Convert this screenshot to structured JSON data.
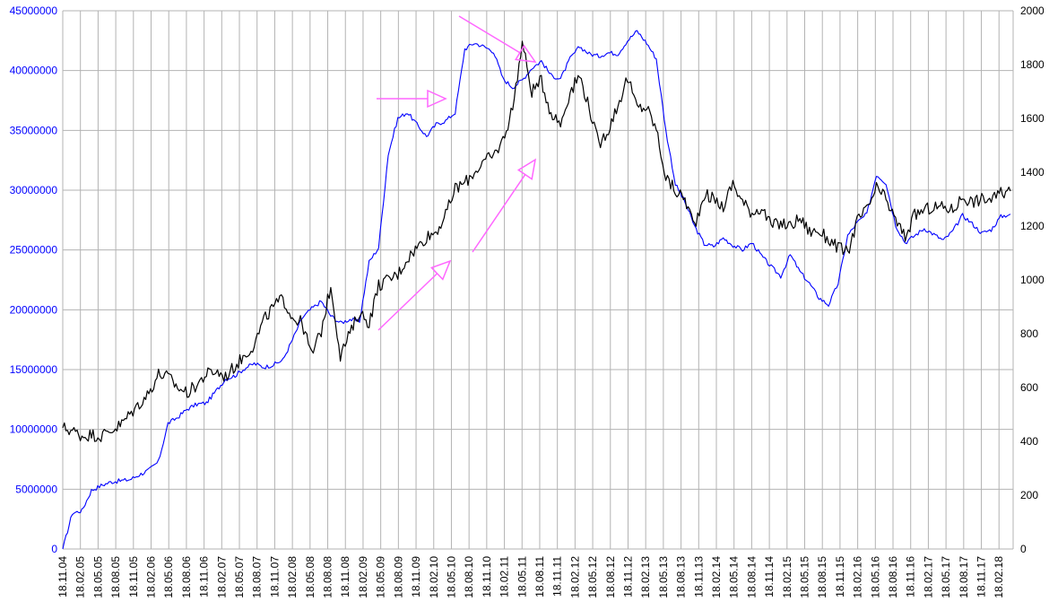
{
  "chart_data": {
    "type": "line",
    "title": "",
    "xlabel": "",
    "ylabel_left": "",
    "ylabel_right": "",
    "grid": true,
    "legend": "none",
    "x_ticks": [
      "18.11.04",
      "18.02.05",
      "18.05.05",
      "18.08.05",
      "18.11.05",
      "18.02.06",
      "18.05.06",
      "18.08.06",
      "18.11.06",
      "18.02.07",
      "18.05.07",
      "18.08.07",
      "18.11.07",
      "18.02.08",
      "18.05.08",
      "18.08.08",
      "18.11.08",
      "18.02.09",
      "18.05.09",
      "18.08.09",
      "18.11.09",
      "18.02.10",
      "18.05.10",
      "18.08.10",
      "18.11.10",
      "18.02.11",
      "18.05.11",
      "18.08.11",
      "18.11.11",
      "18.02.12",
      "18.05.12",
      "18.08.12",
      "18.11.12",
      "18.02.13",
      "18.05.13",
      "18.08.13",
      "18.11.13",
      "18.02.14",
      "18.05.14",
      "18.08.14",
      "18.11.14",
      "18.02.15",
      "18.05.15",
      "18.08.15",
      "18.11.15",
      "18.02.16",
      "18.05.16",
      "18.08.16",
      "18.11.16",
      "18.02.17",
      "18.05.17",
      "18.08.17",
      "18.11.17",
      "18.02.18"
    ],
    "left_axis": {
      "ylim": [
        0,
        45000000
      ],
      "ticks": [
        "0",
        "5000000",
        "10000000",
        "15000000",
        "20000000",
        "25000000",
        "30000000",
        "35000000",
        "40000000",
        "45000000"
      ],
      "color": "#0000ff"
    },
    "right_axis": {
      "ylim": [
        0,
        2000
      ],
      "ticks": [
        "0",
        "200",
        "400",
        "600",
        "800",
        "1000",
        "1200",
        "1400",
        "1600",
        "1800",
        "2000"
      ],
      "color": "#000000"
    },
    "series": [
      {
        "axis": "left",
        "color": "#0000ff",
        "values": [
          0,
          3000000,
          3200000,
          4900000,
          5300000,
          5600000,
          5700000,
          5800000,
          6200000,
          6600000,
          7300000,
          10500000,
          11000000,
          11700000,
          12100000,
          12200000,
          13200000,
          14200000,
          14500000,
          15100000,
          15500000,
          15200000,
          15400000,
          15800000,
          17500000,
          19300000,
          20100000,
          20700000,
          19500000,
          18900000,
          19200000,
          19000000,
          24000000,
          25200000,
          33000000,
          36000000,
          36500000,
          35500000,
          34500000,
          35500000,
          35800000,
          36500000,
          41800000,
          42300000,
          42000000,
          41600000,
          39300000,
          38600000,
          39200000,
          40200000,
          40800000,
          39600000,
          39300000,
          41000000,
          42000000,
          41400000,
          41200000,
          41500000,
          41400000,
          42500000,
          43300000,
          42300000,
          41000000,
          35000000,
          30500000,
          29000000,
          27000000,
          25500000,
          25300000,
          26000000,
          25400000,
          25000000,
          25600000,
          24500000,
          23600000,
          22800000,
          24600000,
          23200000,
          22200000,
          21000000,
          20400000,
          22200000,
          26200000,
          27300000,
          28000000,
          31300000,
          30600000,
          27100000,
          25600000,
          26200000,
          26800000,
          26300000,
          25800000,
          26600000,
          27900000,
          27200000,
          26400000,
          26700000,
          27800000,
          28000000
        ]
      },
      {
        "axis": "right",
        "color": "#000000",
        "values": [
          450,
          440,
          420,
          425,
          420,
          440,
          460,
          500,
          540,
          580,
          650,
          640,
          600,
          580,
          610,
          650,
          660,
          640,
          680,
          720,
          760,
          850,
          900,
          930,
          860,
          840,
          720,
          810,
          980,
          720,
          800,
          880,
          840,
          980,
          1000,
          1020,
          1080,
          1120,
          1160,
          1180,
          1240,
          1340,
          1360,
          1400,
          1440,
          1460,
          1520,
          1640,
          1880,
          1700,
          1740,
          1620,
          1580,
          1700,
          1760,
          1640,
          1500,
          1560,
          1650,
          1750,
          1640,
          1640,
          1560,
          1380,
          1330,
          1300,
          1200,
          1320,
          1300,
          1270,
          1360,
          1290,
          1250,
          1270,
          1200,
          1210,
          1200,
          1230,
          1180,
          1180,
          1150,
          1120,
          1100,
          1220,
          1260,
          1340,
          1300,
          1220,
          1160,
          1240,
          1260,
          1270,
          1270,
          1260,
          1310,
          1290,
          1300,
          1300,
          1320,
          1330
        ]
      }
    ],
    "annotations": [
      {
        "type": "arrow",
        "color": "#ff66ff",
        "from": [
          10.4,
          840
        ],
        "to": [
          10.6,
          1740
        ],
        "axis": "right",
        "style": "outline-arrow"
      }
    ]
  }
}
